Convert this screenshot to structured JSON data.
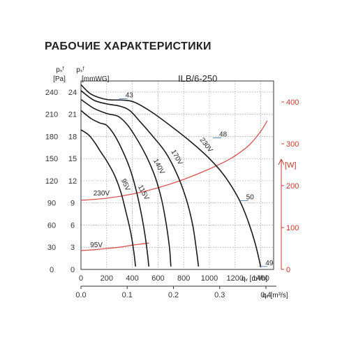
{
  "title": "РАБОЧИЕ ХАРАКТЕРИСТИКИ",
  "colors": {
    "curve": "#1a1a1a",
    "power": "#d9534f",
    "power_axis": "#c0392b",
    "noise": "#3a6fb0",
    "grid": "#9a9a9a"
  },
  "chart_data": {
    "type": "line",
    "model": "ILB/6-250",
    "ylabel_pa": [
      "pₛᶠ",
      "[Pa]"
    ],
    "ylabel_mmwg": [
      "pₛᶠ",
      "[mmWG]"
    ],
    "ylabel_power": "[W]",
    "xlabel_m3h": "qᵥ [m³/h]",
    "xlabel_m3s": "qᵥ [m³/s]",
    "xlim_m3h": [
      0,
      1500
    ],
    "ylim_pa": [
      0,
      255
    ],
    "ylim_w": [
      0,
      450
    ],
    "grid": true,
    "x_ticks_m3h": [
      "0",
      "200",
      "400",
      "600",
      "800",
      "1000",
      "1200",
      "1400"
    ],
    "x_ticks_m3s": [
      "0.0",
      "0.1",
      "0.2",
      "0.3",
      "0.4"
    ],
    "y_ticks_pa": [
      "0",
      "30",
      "60",
      "90",
      "120",
      "150",
      "180",
      "210",
      "240"
    ],
    "y_ticks_mmwg": [
      "0",
      "3",
      "6",
      "9",
      "12",
      "15",
      "18",
      "21",
      "24"
    ],
    "y_ticks_w": [
      "0",
      "100",
      "200",
      "300",
      "400"
    ],
    "series": [
      {
        "name": "230V",
        "points": [
          [
            0,
            250
          ],
          [
            80,
            237
          ],
          [
            200,
            230
          ],
          [
            330,
            229
          ],
          [
            420,
            226
          ],
          [
            550,
            213
          ],
          [
            700,
            194
          ],
          [
            860,
            172
          ],
          [
            1000,
            150
          ],
          [
            1120,
            126
          ],
          [
            1230,
            95
          ],
          [
            1300,
            66
          ],
          [
            1360,
            33
          ],
          [
            1400,
            3
          ]
        ]
      },
      {
        "name": "170V",
        "points": [
          [
            0,
            242
          ],
          [
            100,
            229
          ],
          [
            200,
            224
          ],
          [
            300,
            221
          ],
          [
            380,
            215
          ],
          [
            460,
            200
          ],
          [
            560,
            180
          ],
          [
            660,
            158
          ],
          [
            750,
            128
          ],
          [
            820,
            95
          ],
          [
            870,
            60
          ],
          [
            900,
            25
          ],
          [
            915,
            4
          ]
        ]
      },
      {
        "name": "140V",
        "points": [
          [
            0,
            230
          ],
          [
            100,
            218
          ],
          [
            200,
            211
          ],
          [
            290,
            207
          ],
          [
            360,
            196
          ],
          [
            430,
            178
          ],
          [
            510,
            153
          ],
          [
            580,
            124
          ],
          [
            630,
            93
          ],
          [
            665,
            60
          ],
          [
            690,
            28
          ],
          [
            700,
            4
          ]
        ]
      },
      {
        "name": "115V",
        "points": [
          [
            0,
            215
          ],
          [
            80,
            204
          ],
          [
            150,
            198
          ],
          [
            200,
            195
          ],
          [
            260,
            182
          ],
          [
            320,
            162
          ],
          [
            380,
            137
          ],
          [
            430,
            107
          ],
          [
            470,
            75
          ],
          [
            500,
            45
          ],
          [
            520,
            18
          ],
          [
            528,
            4
          ]
        ]
      },
      {
        "name": "95V",
        "points": [
          [
            0,
            189
          ],
          [
            60,
            182
          ],
          [
            110,
            171
          ],
          [
            150,
            160
          ],
          [
            200,
            147
          ],
          [
            260,
            128
          ],
          [
            310,
            105
          ],
          [
            350,
            78
          ],
          [
            385,
            52
          ],
          [
            410,
            26
          ],
          [
            425,
            4
          ]
        ]
      }
    ],
    "power_series": [
      {
        "name": "230V",
        "points_w": [
          [
            0,
            165
          ],
          [
            200,
            170
          ],
          [
            400,
            180
          ],
          [
            600,
            195
          ],
          [
            800,
            215
          ],
          [
            1000,
            240
          ],
          [
            1150,
            262
          ],
          [
            1250,
            282
          ],
          [
            1320,
            300
          ],
          [
            1400,
            330
          ],
          [
            1450,
            355
          ]
        ]
      },
      {
        "name": "95V",
        "points_w": [
          [
            0,
            45
          ],
          [
            100,
            47
          ],
          [
            200,
            50
          ],
          [
            300,
            53
          ],
          [
            400,
            58
          ],
          [
            450,
            60
          ],
          [
            530,
            63
          ]
        ]
      }
    ],
    "noise_labels": [
      {
        "text": "43",
        "point": [
          330,
          231
        ]
      },
      {
        "text": "48",
        "point": [
          1060,
          178
        ]
      },
      {
        "text": "50",
        "point": [
          1270,
          93
        ]
      },
      {
        "text": "49",
        "point": [
          1420,
          4
        ]
      }
    ]
  }
}
